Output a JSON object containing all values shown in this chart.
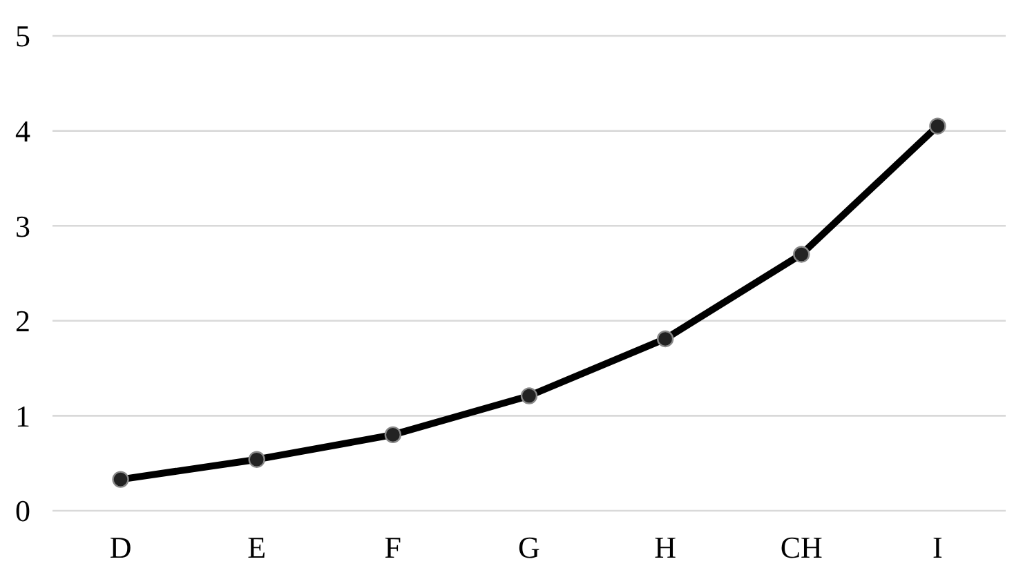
{
  "chart_data": {
    "type": "line",
    "categories": [
      "D",
      "E",
      "F",
      "G",
      "H",
      "CH",
      "I"
    ],
    "series": [
      {
        "color": "#000000",
        "values": [
          0.33,
          0.54,
          0.8,
          1.21,
          1.81,
          2.7,
          4.05
        ]
      }
    ],
    "ylim": [
      0,
      5
    ],
    "yticks": [
      0,
      1,
      2,
      3,
      4,
      5
    ],
    "grid": "y",
    "marker": "circle",
    "line_style": "solid"
  }
}
